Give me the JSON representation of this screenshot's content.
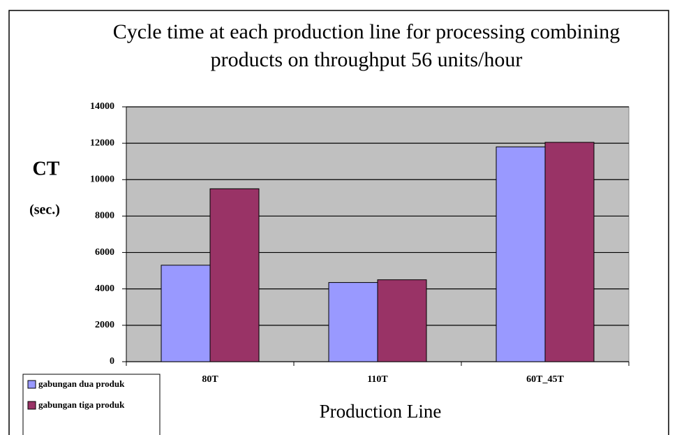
{
  "chart_data": {
    "type": "bar",
    "title": "Cycle time at each production line for processing combining products on throughput 56 units/hour",
    "ylabel": "CT",
    "ylabel_sub": "(sec.)",
    "xlabel": "Production Line",
    "categories": [
      "80T",
      "110T",
      "60T_45T"
    ],
    "series": [
      {
        "name": "gabungan dua produk",
        "color": "#9999ff",
        "values": [
          5300,
          4350,
          11800
        ]
      },
      {
        "name": "gabungan tiga produk",
        "color": "#993366",
        "values": [
          9500,
          4500,
          12050
        ]
      }
    ],
    "ylim": [
      0,
      14000
    ],
    "yticks": [
      0,
      2000,
      4000,
      6000,
      8000,
      10000,
      12000,
      14000
    ],
    "grid": true,
    "legend": "bottom-left",
    "plot_background": "#c0c0c0"
  }
}
